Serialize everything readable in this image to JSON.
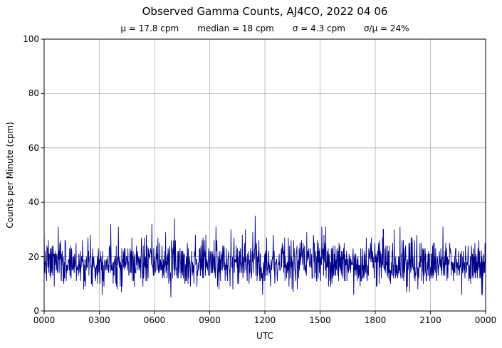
{
  "chart_data": {
    "type": "line",
    "title": "Observed Gamma Counts, AJ4CO, 2022 04 06",
    "stats": [
      "μ = 17.8 cpm",
      "median = 18 cpm",
      "σ = 4.3 cpm",
      "σ/μ = 24%"
    ],
    "xlabel": "UTC",
    "ylabel": "Counts per Minute (cpm)",
    "x_tick_labels": [
      "0000",
      "0300",
      "0600",
      "0900",
      "1200",
      "1500",
      "1800",
      "2100",
      "0000"
    ],
    "x_tick_minutes": [
      0,
      180,
      360,
      540,
      720,
      900,
      1080,
      1260,
      1440
    ],
    "x_range_minutes": [
      0,
      1440
    ],
    "y_ticks": [
      0,
      20,
      40,
      60,
      80,
      100
    ],
    "ylim": [
      0,
      100
    ],
    "grid": true,
    "legend": "none",
    "line_color": "#00008B",
    "grid_color": "#b0b0b0",
    "n_points": 1440,
    "series_stats": {
      "mean": 17.8,
      "median": 18,
      "sigma": 4.3,
      "cv_percent": 24,
      "min": 5,
      "max": 35
    },
    "noise_seed": 7,
    "notable_points": [
      {
        "minute": 242,
        "value": 31
      },
      {
        "minute": 413,
        "value": 5
      },
      {
        "minute": 425,
        "value": 34
      },
      {
        "minute": 560,
        "value": 31
      },
      {
        "minute": 688,
        "value": 35
      },
      {
        "minute": 905,
        "value": 31
      },
      {
        "minute": 1105,
        "value": 30
      },
      {
        "minute": 1300,
        "value": 31
      }
    ]
  }
}
